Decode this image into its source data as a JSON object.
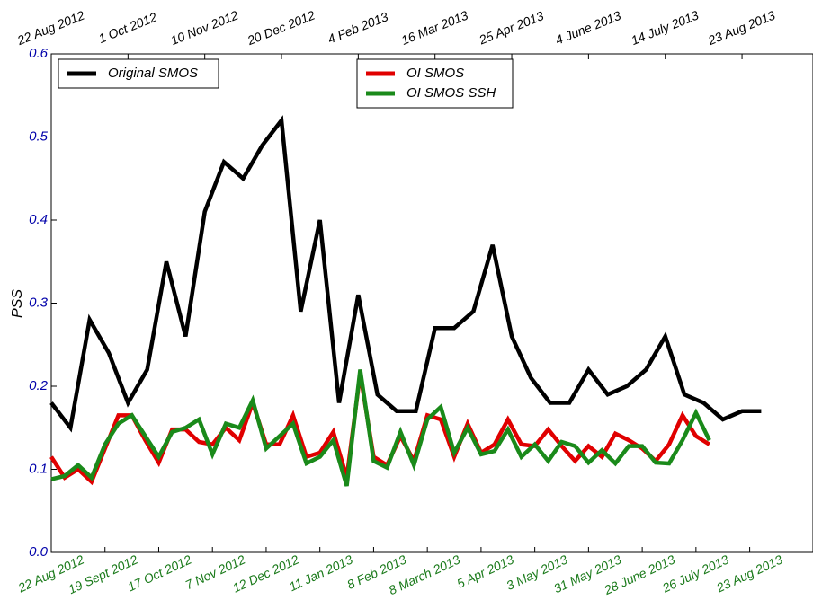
{
  "chart_data": {
    "type": "line",
    "ylabel": "PSS",
    "ylim": [
      0,
      0.6
    ],
    "yticks": [
      {
        "value": 0,
        "label": "0.0"
      },
      0.1,
      0.2,
      0.3,
      0.4,
      0.5,
      0.6
    ],
    "xlim": [
      0,
      397
    ],
    "xticks_top": [
      {
        "value": 0,
        "label": "22 Aug 2012"
      },
      {
        "value": 40,
        "label": "1 Oct 2012"
      },
      {
        "value": 80,
        "label": "10 Nov 2012"
      },
      {
        "value": 120,
        "label": "20 Dec 2012"
      },
      {
        "value": 160,
        "label": "4 Feb 2013"
      },
      {
        "value": 200,
        "label": "16 Mar 2013"
      },
      {
        "value": 240,
        "label": "25 Apr 2013"
      },
      {
        "value": 280,
        "label": "4 June 2013"
      },
      {
        "value": 320,
        "label": "14 July 2013"
      },
      {
        "value": 360,
        "label": "23 Aug 2013"
      }
    ],
    "xticks": [
      {
        "value": 0,
        "label": "22 Aug 2012"
      },
      {
        "value": 28,
        "label": "19 Sept 2012"
      },
      {
        "value": 56,
        "label": "17 Oct 2012"
      },
      {
        "value": 84,
        "label": "7 Nov 2012"
      },
      {
        "value": 112,
        "label": "12 Dec 2012"
      },
      {
        "value": 140,
        "label": "11 Jan 2013"
      },
      {
        "value": 168,
        "label": "8 Feb 2013"
      },
      {
        "value": 196,
        "label": "8 March 2013"
      },
      {
        "value": 224,
        "label": "5 Apr 2013"
      },
      {
        "value": 252,
        "label": "3 May  2013"
      },
      {
        "value": 280,
        "label": "31 May 2013"
      },
      {
        "value": 308,
        "label": "28 June 2013"
      },
      {
        "value": 336,
        "label": "26 July 2013"
      },
      {
        "value": 364,
        "label": "23 Aug 2013"
      }
    ],
    "ytick_color": "#0000aa",
    "xtick_color": "#1a7a1a",
    "series": [
      {
        "name": "Original SMOS",
        "color": "#000000",
        "x": [
          0,
          10,
          20,
          30,
          40,
          50,
          60,
          70,
          80,
          90,
          100,
          110,
          120,
          130,
          140,
          150,
          160,
          170,
          180,
          190,
          200,
          210,
          220,
          230,
          240,
          250,
          260,
          270,
          280,
          290,
          300,
          310,
          320,
          330,
          340,
          350,
          360,
          370
        ],
        "values": [
          0.18,
          0.15,
          0.28,
          0.24,
          0.18,
          0.22,
          0.35,
          0.26,
          0.41,
          0.47,
          0.45,
          0.49,
          0.52,
          0.29,
          0.4,
          0.18,
          0.31,
          0.19,
          0.17,
          0.17,
          0.27,
          0.27,
          0.29,
          0.37,
          0.26,
          0.21,
          0.18,
          0.18,
          0.22,
          0.19,
          0.2,
          0.22,
          0.26,
          0.19,
          0.18,
          0.16,
          0.17,
          0.17
        ]
      },
      {
        "name": "OI SMOS",
        "color": "#e00000",
        "x": [
          0,
          7,
          14,
          21,
          28,
          35,
          42,
          49,
          56,
          63,
          70,
          77,
          84,
          91,
          98,
          105,
          112,
          119,
          126,
          133,
          140,
          147,
          154,
          161,
          168,
          175,
          182,
          189,
          196,
          203,
          210,
          217,
          224,
          231,
          238,
          245,
          252,
          259,
          266,
          273,
          280,
          287,
          294,
          301,
          308,
          315,
          322,
          329,
          336,
          343
        ],
        "values": [
          0.115,
          0.09,
          0.1,
          0.085,
          0.125,
          0.165,
          0.165,
          0.135,
          0.108,
          0.148,
          0.148,
          0.133,
          0.13,
          0.15,
          0.135,
          0.18,
          0.13,
          0.13,
          0.165,
          0.115,
          0.12,
          0.145,
          0.09,
          0.215,
          0.115,
          0.105,
          0.14,
          0.11,
          0.165,
          0.16,
          0.115,
          0.155,
          0.12,
          0.13,
          0.16,
          0.13,
          0.128,
          0.148,
          0.128,
          0.11,
          0.128,
          0.115,
          0.143,
          0.135,
          0.125,
          0.11,
          0.13,
          0.165,
          0.14,
          0.13
        ]
      },
      {
        "name": "OI SMOS SSH",
        "color": "#1a8a1a",
        "x": [
          0,
          7,
          14,
          21,
          28,
          35,
          42,
          49,
          56,
          63,
          70,
          77,
          84,
          91,
          98,
          105,
          112,
          119,
          126,
          133,
          140,
          147,
          154,
          161,
          168,
          175,
          182,
          189,
          196,
          203,
          210,
          217,
          224,
          231,
          238,
          245,
          252,
          259,
          266,
          273,
          280,
          287,
          294,
          301,
          308,
          315,
          322,
          329,
          336,
          343
        ],
        "values": [
          0.088,
          0.092,
          0.105,
          0.09,
          0.13,
          0.155,
          0.165,
          0.14,
          0.115,
          0.145,
          0.15,
          0.16,
          0.118,
          0.155,
          0.15,
          0.183,
          0.125,
          0.14,
          0.155,
          0.107,
          0.115,
          0.135,
          0.08,
          0.22,
          0.11,
          0.102,
          0.145,
          0.105,
          0.16,
          0.175,
          0.12,
          0.15,
          0.118,
          0.122,
          0.148,
          0.115,
          0.13,
          0.11,
          0.133,
          0.128,
          0.108,
          0.123,
          0.107,
          0.128,
          0.128,
          0.108,
          0.107,
          0.135,
          0.168,
          0.135
        ]
      }
    ]
  }
}
